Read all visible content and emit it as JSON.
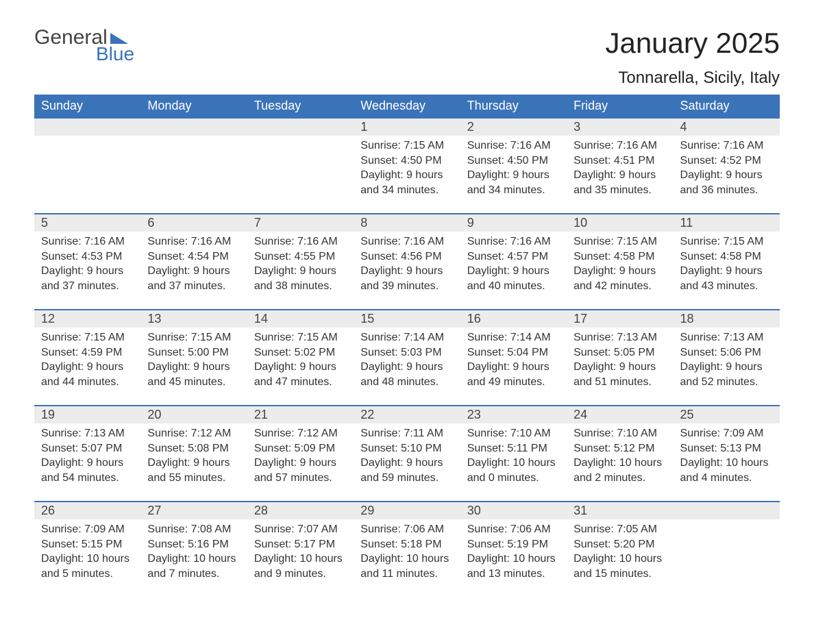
{
  "logo": {
    "word1": "General",
    "word2": "Blue"
  },
  "title": "January 2025",
  "location": "Tonnarella, Sicily, Italy",
  "colors": {
    "header_bg": "#3b73b9",
    "header_text": "#ffffff",
    "row_border": "#3b73b9",
    "daynum_bg": "#ececec",
    "body_text": "#333333",
    "logo_gray": "#444444",
    "logo_blue": "#3b73b9",
    "page_bg": "#ffffff"
  },
  "typography": {
    "title_fontsize": 42,
    "location_fontsize": 24,
    "dayheader_fontsize": 18,
    "daynum_fontsize": 18,
    "detail_fontsize": 16
  },
  "day_headers": [
    "Sunday",
    "Monday",
    "Tuesday",
    "Wednesday",
    "Thursday",
    "Friday",
    "Saturday"
  ],
  "weeks": [
    [
      null,
      null,
      null,
      {
        "n": "1",
        "sunrise": "Sunrise: 7:15 AM",
        "sunset": "Sunset: 4:50 PM",
        "daylight": "Daylight: 9 hours and 34 minutes."
      },
      {
        "n": "2",
        "sunrise": "Sunrise: 7:16 AM",
        "sunset": "Sunset: 4:50 PM",
        "daylight": "Daylight: 9 hours and 34 minutes."
      },
      {
        "n": "3",
        "sunrise": "Sunrise: 7:16 AM",
        "sunset": "Sunset: 4:51 PM",
        "daylight": "Daylight: 9 hours and 35 minutes."
      },
      {
        "n": "4",
        "sunrise": "Sunrise: 7:16 AM",
        "sunset": "Sunset: 4:52 PM",
        "daylight": "Daylight: 9 hours and 36 minutes."
      }
    ],
    [
      {
        "n": "5",
        "sunrise": "Sunrise: 7:16 AM",
        "sunset": "Sunset: 4:53 PM",
        "daylight": "Daylight: 9 hours and 37 minutes."
      },
      {
        "n": "6",
        "sunrise": "Sunrise: 7:16 AM",
        "sunset": "Sunset: 4:54 PM",
        "daylight": "Daylight: 9 hours and 37 minutes."
      },
      {
        "n": "7",
        "sunrise": "Sunrise: 7:16 AM",
        "sunset": "Sunset: 4:55 PM",
        "daylight": "Daylight: 9 hours and 38 minutes."
      },
      {
        "n": "8",
        "sunrise": "Sunrise: 7:16 AM",
        "sunset": "Sunset: 4:56 PM",
        "daylight": "Daylight: 9 hours and 39 minutes."
      },
      {
        "n": "9",
        "sunrise": "Sunrise: 7:16 AM",
        "sunset": "Sunset: 4:57 PM",
        "daylight": "Daylight: 9 hours and 40 minutes."
      },
      {
        "n": "10",
        "sunrise": "Sunrise: 7:15 AM",
        "sunset": "Sunset: 4:58 PM",
        "daylight": "Daylight: 9 hours and 42 minutes."
      },
      {
        "n": "11",
        "sunrise": "Sunrise: 7:15 AM",
        "sunset": "Sunset: 4:58 PM",
        "daylight": "Daylight: 9 hours and 43 minutes."
      }
    ],
    [
      {
        "n": "12",
        "sunrise": "Sunrise: 7:15 AM",
        "sunset": "Sunset: 4:59 PM",
        "daylight": "Daylight: 9 hours and 44 minutes."
      },
      {
        "n": "13",
        "sunrise": "Sunrise: 7:15 AM",
        "sunset": "Sunset: 5:00 PM",
        "daylight": "Daylight: 9 hours and 45 minutes."
      },
      {
        "n": "14",
        "sunrise": "Sunrise: 7:15 AM",
        "sunset": "Sunset: 5:02 PM",
        "daylight": "Daylight: 9 hours and 47 minutes."
      },
      {
        "n": "15",
        "sunrise": "Sunrise: 7:14 AM",
        "sunset": "Sunset: 5:03 PM",
        "daylight": "Daylight: 9 hours and 48 minutes."
      },
      {
        "n": "16",
        "sunrise": "Sunrise: 7:14 AM",
        "sunset": "Sunset: 5:04 PM",
        "daylight": "Daylight: 9 hours and 49 minutes."
      },
      {
        "n": "17",
        "sunrise": "Sunrise: 7:13 AM",
        "sunset": "Sunset: 5:05 PM",
        "daylight": "Daylight: 9 hours and 51 minutes."
      },
      {
        "n": "18",
        "sunrise": "Sunrise: 7:13 AM",
        "sunset": "Sunset: 5:06 PM",
        "daylight": "Daylight: 9 hours and 52 minutes."
      }
    ],
    [
      {
        "n": "19",
        "sunrise": "Sunrise: 7:13 AM",
        "sunset": "Sunset: 5:07 PM",
        "daylight": "Daylight: 9 hours and 54 minutes."
      },
      {
        "n": "20",
        "sunrise": "Sunrise: 7:12 AM",
        "sunset": "Sunset: 5:08 PM",
        "daylight": "Daylight: 9 hours and 55 minutes."
      },
      {
        "n": "21",
        "sunrise": "Sunrise: 7:12 AM",
        "sunset": "Sunset: 5:09 PM",
        "daylight": "Daylight: 9 hours and 57 minutes."
      },
      {
        "n": "22",
        "sunrise": "Sunrise: 7:11 AM",
        "sunset": "Sunset: 5:10 PM",
        "daylight": "Daylight: 9 hours and 59 minutes."
      },
      {
        "n": "23",
        "sunrise": "Sunrise: 7:10 AM",
        "sunset": "Sunset: 5:11 PM",
        "daylight": "Daylight: 10 hours and 0 minutes."
      },
      {
        "n": "24",
        "sunrise": "Sunrise: 7:10 AM",
        "sunset": "Sunset: 5:12 PM",
        "daylight": "Daylight: 10 hours and 2 minutes."
      },
      {
        "n": "25",
        "sunrise": "Sunrise: 7:09 AM",
        "sunset": "Sunset: 5:13 PM",
        "daylight": "Daylight: 10 hours and 4 minutes."
      }
    ],
    [
      {
        "n": "26",
        "sunrise": "Sunrise: 7:09 AM",
        "sunset": "Sunset: 5:15 PM",
        "daylight": "Daylight: 10 hours and 5 minutes."
      },
      {
        "n": "27",
        "sunrise": "Sunrise: 7:08 AM",
        "sunset": "Sunset: 5:16 PM",
        "daylight": "Daylight: 10 hours and 7 minutes."
      },
      {
        "n": "28",
        "sunrise": "Sunrise: 7:07 AM",
        "sunset": "Sunset: 5:17 PM",
        "daylight": "Daylight: 10 hours and 9 minutes."
      },
      {
        "n": "29",
        "sunrise": "Sunrise: 7:06 AM",
        "sunset": "Sunset: 5:18 PM",
        "daylight": "Daylight: 10 hours and 11 minutes."
      },
      {
        "n": "30",
        "sunrise": "Sunrise: 7:06 AM",
        "sunset": "Sunset: 5:19 PM",
        "daylight": "Daylight: 10 hours and 13 minutes."
      },
      {
        "n": "31",
        "sunrise": "Sunrise: 7:05 AM",
        "sunset": "Sunset: 5:20 PM",
        "daylight": "Daylight: 10 hours and 15 minutes."
      },
      null
    ]
  ]
}
